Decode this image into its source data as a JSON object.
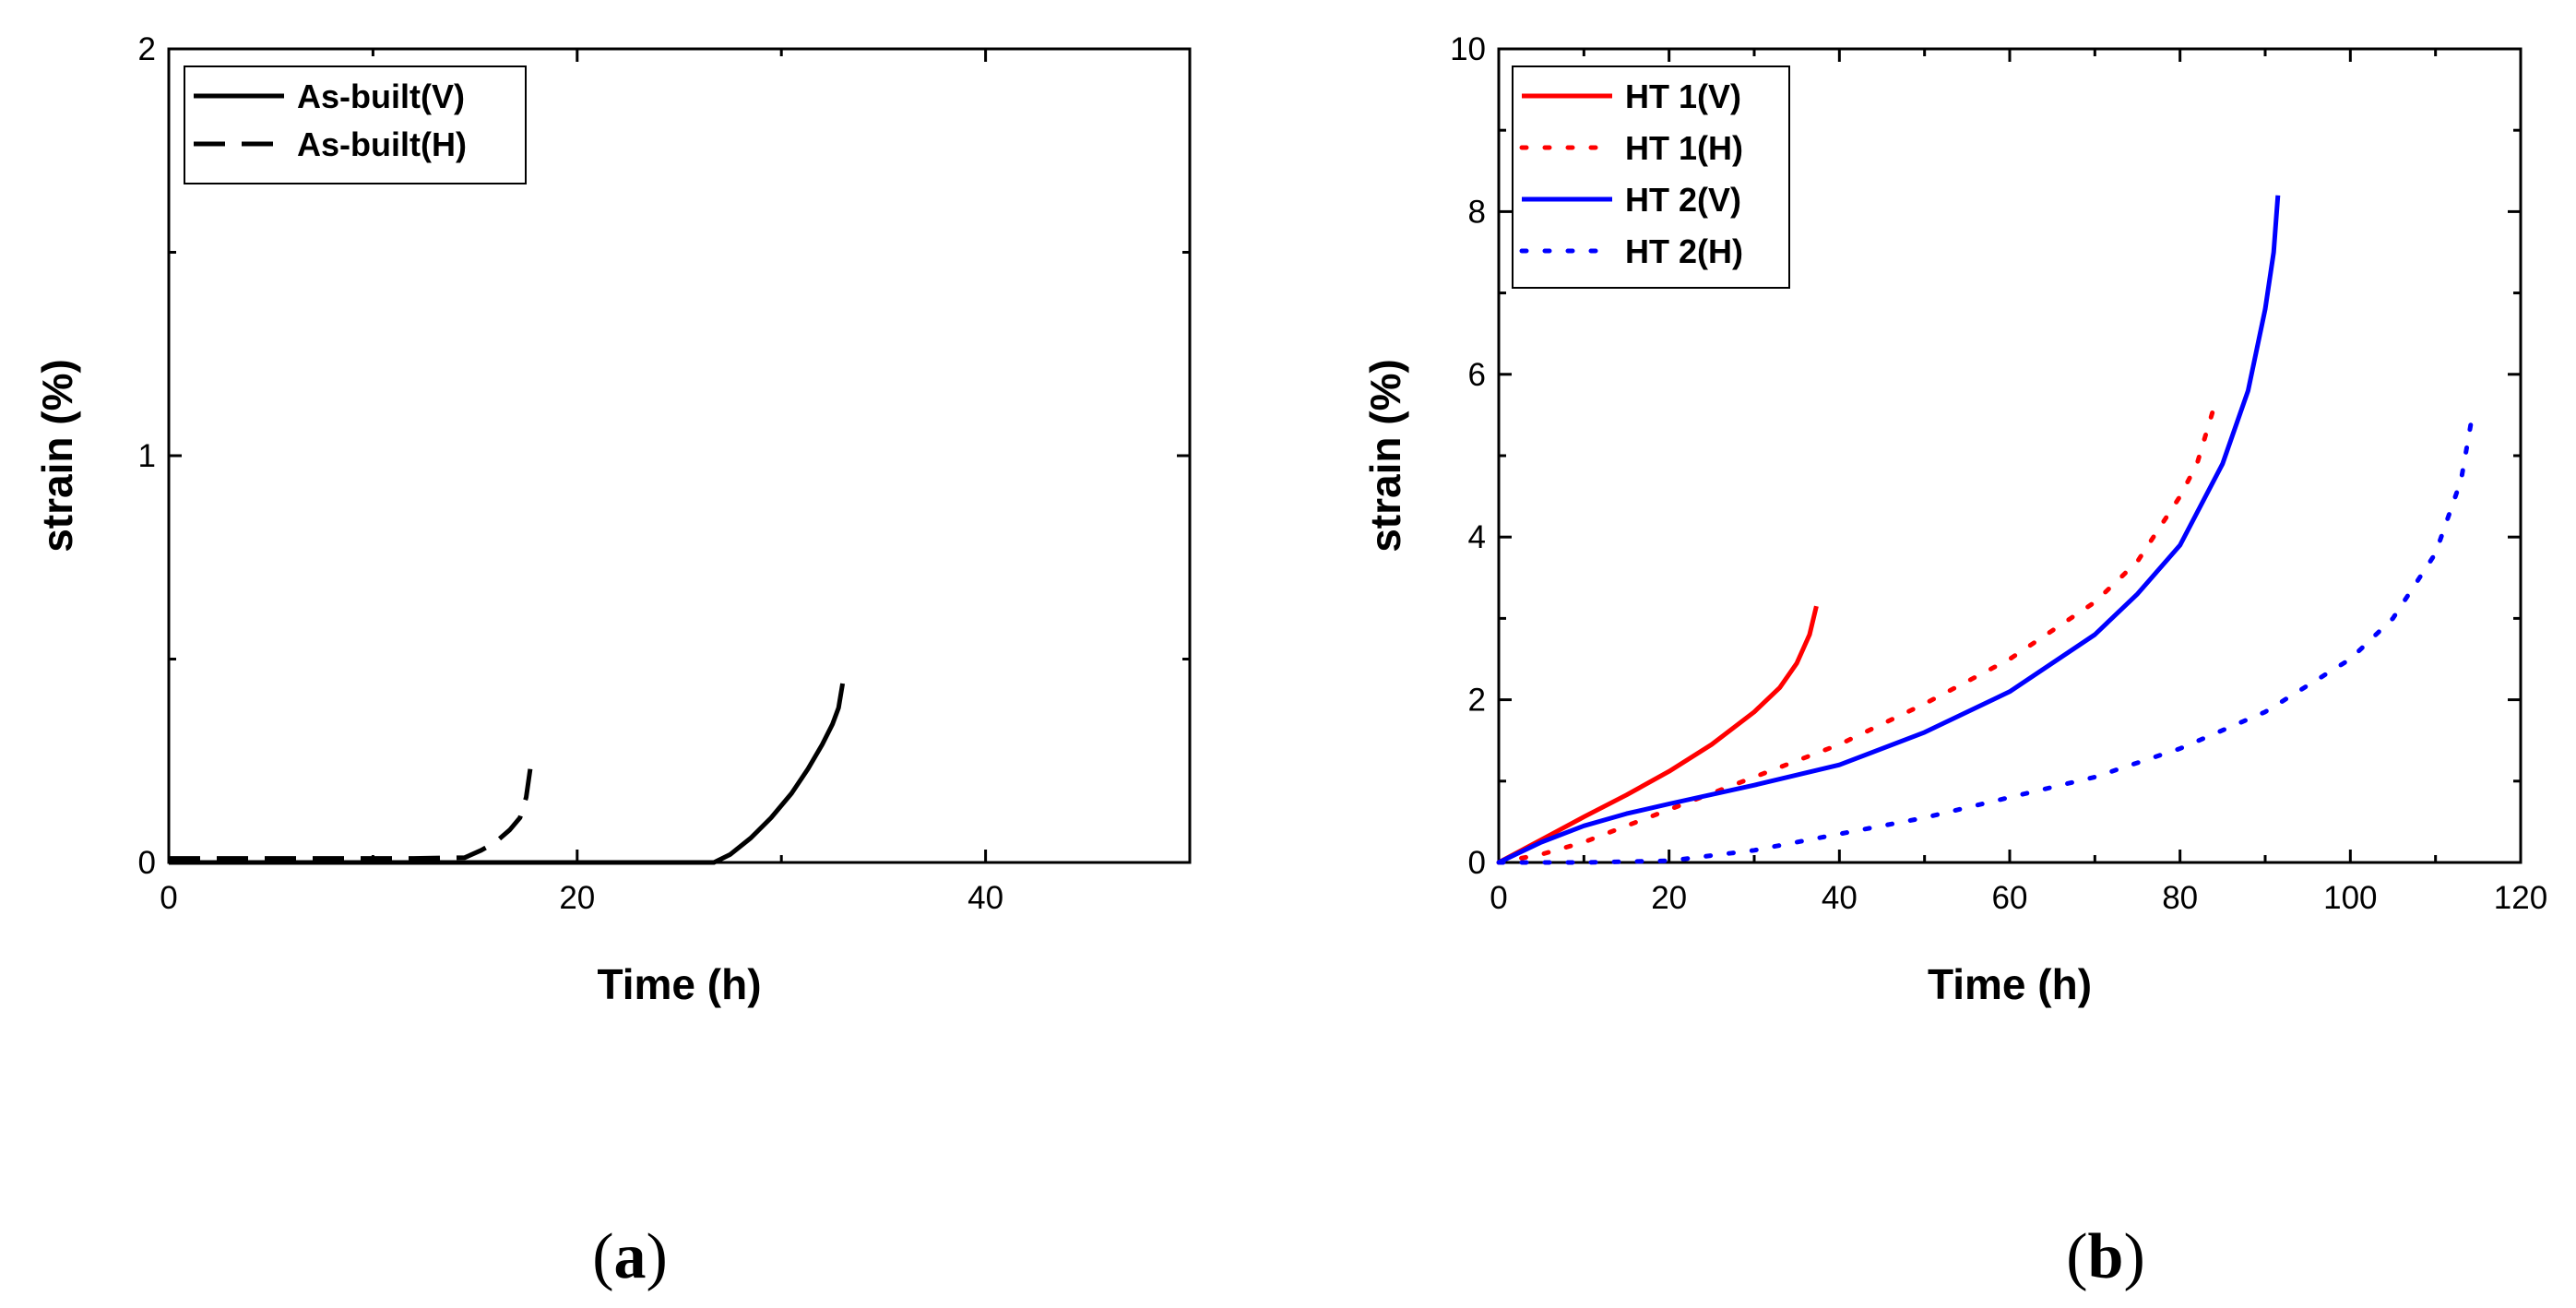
{
  "chart_data": [
    {
      "id": "a",
      "type": "line",
      "panel_label": {
        "open": "(",
        "letter": "a",
        "close": ")"
      },
      "xlabel": "Time (h)",
      "ylabel": "strain (%)",
      "xlim": [
        0,
        50
      ],
      "ylim": [
        0,
        2
      ],
      "xticks": [
        0,
        20,
        40
      ],
      "xticks_minor": [
        10,
        30,
        50
      ],
      "yticks": [
        0,
        1,
        2
      ],
      "yticks_minor": [
        0.5,
        1.5
      ],
      "grid": false,
      "legend_position": "top-left",
      "series": [
        {
          "name": "As-built(V)",
          "color": "#000000",
          "style": "solid",
          "x": [
            0,
            5,
            10,
            15,
            20,
            25,
            26.7,
            27.5,
            28.5,
            29.5,
            30.5,
            31.3,
            32,
            32.5,
            32.8,
            33.0
          ],
          "y": [
            0,
            0,
            0,
            0,
            0,
            0,
            0,
            0.02,
            0.06,
            0.11,
            0.17,
            0.23,
            0.29,
            0.34,
            0.38,
            0.44
          ]
        },
        {
          "name": "As-built(H)",
          "color": "#000000",
          "style": "dashed",
          "x": [
            0,
            3,
            6,
            9,
            12,
            14.5,
            15.3,
            16,
            16.7,
            17.2,
            17.5,
            17.7
          ],
          "y": [
            0.01,
            0.01,
            0.01,
            0.01,
            0.01,
            0.012,
            0.03,
            0.05,
            0.08,
            0.11,
            0.16,
            0.23
          ]
        }
      ]
    },
    {
      "id": "b",
      "type": "line",
      "panel_label": {
        "open": "(",
        "letter": "b",
        "close": ")"
      },
      "xlabel": "Time (h)",
      "ylabel": "strain (%)",
      "xlim": [
        0,
        120
      ],
      "ylim": [
        0,
        10
      ],
      "xticks": [
        0,
        20,
        40,
        60,
        80,
        100,
        120
      ],
      "xticks_minor": [
        10,
        30,
        50,
        70,
        90,
        110
      ],
      "yticks": [
        0,
        2,
        4,
        6,
        8,
        10
      ],
      "yticks_minor": [
        1,
        3,
        5,
        7,
        9
      ],
      "grid": false,
      "legend_position": "top-left",
      "series": [
        {
          "name": "HT 1(V)",
          "color": "#ff0000",
          "style": "solid",
          "x": [
            0,
            5,
            10,
            15,
            20,
            25,
            30,
            33,
            35,
            36.5,
            37.3
          ],
          "y": [
            0,
            0.28,
            0.56,
            0.83,
            1.12,
            1.45,
            1.85,
            2.15,
            2.45,
            2.8,
            3.15
          ]
        },
        {
          "name": "HT 1(H)",
          "color": "#ff0000",
          "style": "dotted",
          "x": [
            0,
            5,
            10,
            15,
            20,
            30,
            40,
            50,
            60,
            70,
            75,
            80,
            82,
            84
          ],
          "y": [
            0,
            0.1,
            0.25,
            0.45,
            0.65,
            1.05,
            1.45,
            1.95,
            2.5,
            3.2,
            3.7,
            4.5,
            4.9,
            5.6
          ]
        },
        {
          "name": "HT 2(V)",
          "color": "#0000ff",
          "style": "solid",
          "x": [
            0,
            5,
            10,
            15,
            20,
            30,
            40,
            50,
            60,
            70,
            75,
            80,
            85,
            88,
            90,
            91,
            91.5
          ],
          "y": [
            0,
            0.25,
            0.45,
            0.6,
            0.72,
            0.95,
            1.2,
            1.6,
            2.1,
            2.8,
            3.3,
            3.9,
            4.9,
            5.8,
            6.8,
            7.5,
            8.2
          ]
        },
        {
          "name": "HT 2(H)",
          "color": "#0000ff",
          "style": "dotted",
          "x": [
            0,
            10,
            20,
            30,
            40,
            50,
            60,
            70,
            80,
            90,
            100,
            105,
            110,
            113,
            114.5
          ],
          "y": [
            0,
            0,
            0.02,
            0.15,
            0.35,
            0.55,
            0.8,
            1.05,
            1.4,
            1.85,
            2.5,
            3.0,
            3.8,
            4.7,
            5.6
          ]
        }
      ]
    }
  ]
}
